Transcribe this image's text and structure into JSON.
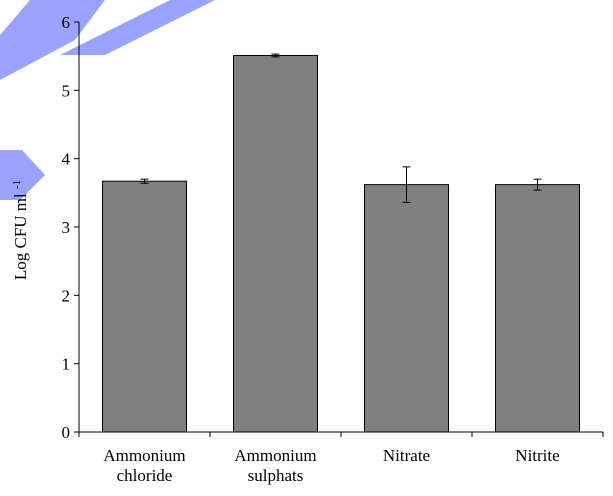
{
  "chart_data": {
    "type": "bar",
    "categories": [
      [
        "Ammonium",
        "chloride"
      ],
      [
        "Ammonium",
        "sulphats"
      ],
      [
        "Nitrate"
      ],
      [
        "Nitrite"
      ]
    ],
    "values": [
      3.67,
      5.51,
      3.62,
      3.62
    ],
    "errors": [
      0.03,
      0.02,
      0.26,
      0.08
    ],
    "ylabel": "Log CFU ml",
    "ylabel_superscript": "-1",
    "ylim": [
      0,
      6
    ],
    "yticks": [
      "0",
      "1",
      "2",
      "3",
      "4",
      "5",
      "6"
    ],
    "grid": false,
    "legend": "none",
    "bar_color": "#808080",
    "bar_edge_color": "#000000",
    "decoration_color": "#8f98ff"
  }
}
